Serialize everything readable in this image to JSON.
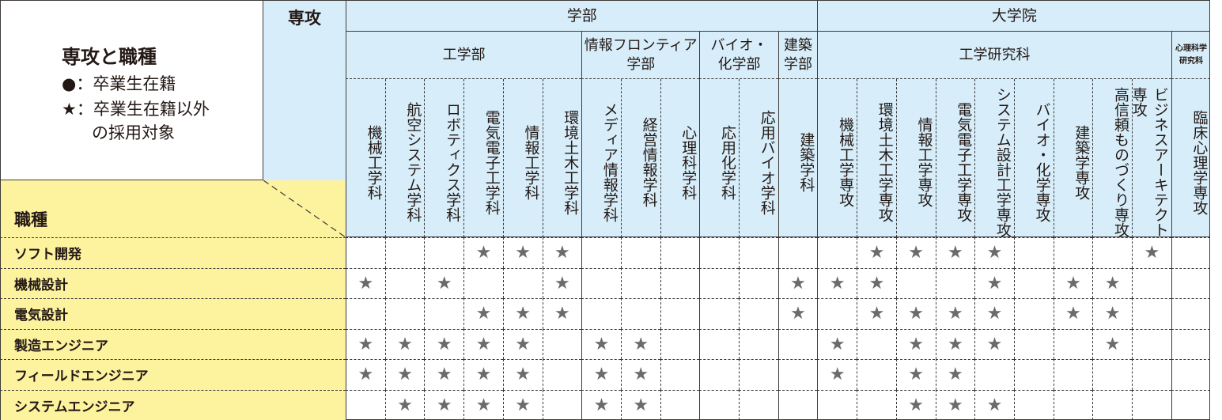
{
  "legend": {
    "title": "専攻と職種",
    "circle_line": "●：卒業生在籍",
    "star_line_1": "★：卒業生在籍以外",
    "star_line_2": "の採用対象"
  },
  "major_header": "専攻",
  "job_header": "職種",
  "top_groups": [
    {
      "label": "学部",
      "start": 0,
      "end": 11
    },
    {
      "label": "大学院",
      "start": 12,
      "end": 21
    }
  ],
  "sub_groups": [
    {
      "label": "工学部",
      "start": 0,
      "end": 5
    },
    {
      "label": "情報フロンティア\n学部",
      "start": 6,
      "end": 8
    },
    {
      "label": "バイオ・\n化学部",
      "start": 9,
      "end": 10
    },
    {
      "label": "建築\n学部",
      "start": 11,
      "end": 11
    },
    {
      "label": "工学研究科",
      "start": 12,
      "end": 20
    },
    {
      "label": "心理科学\n研究科",
      "start": 21,
      "end": 21,
      "small": true
    }
  ],
  "columns": [
    "機械工学科",
    "航空システム学科",
    "ロボティクス学科",
    "電気電子工学科",
    "情報工学科",
    "環境土木工学科",
    "メディア情報学科",
    "経営情報学科",
    "心理科学科",
    "応用化学科",
    "応用バイオ学科",
    "建築学科",
    "機械工学専攻",
    "環境土木工学専攻",
    "情報工学専攻",
    "電気電子工学専攻",
    "システム設計工学専攻",
    "バイオ・化学専攻",
    "建築学専攻",
    "高信頼ものづくり専攻",
    "ビジネスアーキテクト専攻",
    "臨床心理学専攻"
  ],
  "rows": [
    {
      "label": "ソフト開発",
      "marks": [
        0,
        0,
        0,
        1,
        1,
        1,
        0,
        0,
        0,
        0,
        0,
        0,
        0,
        1,
        1,
        1,
        1,
        0,
        0,
        0,
        1,
        0
      ]
    },
    {
      "label": "機械設計",
      "marks": [
        1,
        0,
        1,
        0,
        0,
        1,
        0,
        0,
        0,
        0,
        0,
        1,
        1,
        1,
        0,
        0,
        1,
        0,
        1,
        1,
        0,
        0
      ]
    },
    {
      "label": "電気設計",
      "marks": [
        0,
        0,
        0,
        1,
        1,
        1,
        0,
        0,
        0,
        0,
        0,
        1,
        0,
        1,
        1,
        1,
        1,
        0,
        1,
        1,
        0,
        0
      ]
    },
    {
      "label": "製造エンジニア",
      "marks": [
        1,
        1,
        1,
        1,
        1,
        0,
        1,
        1,
        0,
        0,
        0,
        0,
        1,
        0,
        1,
        1,
        1,
        0,
        0,
        1,
        0,
        0
      ]
    },
    {
      "label": "フィールドエンジニア",
      "marks": [
        1,
        1,
        1,
        1,
        1,
        0,
        1,
        1,
        0,
        0,
        0,
        0,
        1,
        0,
        1,
        1,
        0,
        0,
        0,
        0,
        0,
        0
      ]
    },
    {
      "label": "システムエンジニア",
      "marks": [
        0,
        1,
        1,
        1,
        1,
        0,
        1,
        1,
        0,
        0,
        0,
        0,
        0,
        0,
        1,
        1,
        1,
        0,
        0,
        0,
        0,
        0
      ]
    }
  ],
  "mark_symbol": "★",
  "colors": {
    "header_blue": "#d7eefa",
    "job_yellow": "#fdf39f",
    "star": "#6b6b6b",
    "line": "#3e3a39"
  }
}
